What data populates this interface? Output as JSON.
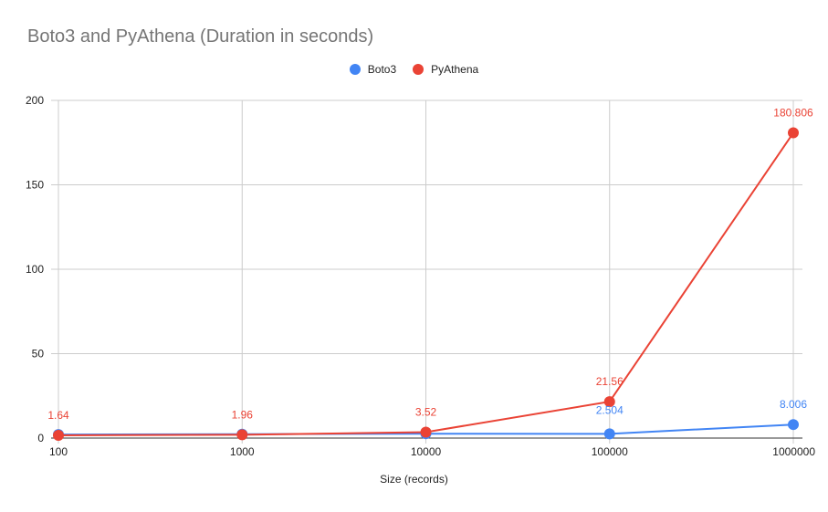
{
  "chart_data": {
    "type": "line",
    "title": "Boto3 and PyAthena (Duration in seconds)",
    "xlabel": "Size (records)",
    "ylabel": "",
    "categories": [
      "100",
      "1000",
      "10000",
      "100000",
      "1000000"
    ],
    "series": [
      {
        "name": "Boto3",
        "color": "#4285f4",
        "values": [
          2.1,
          2.3,
          2.6,
          2.504,
          8.006
        ],
        "labels": [
          "",
          "",
          "",
          "2.504",
          "8.006"
        ]
      },
      {
        "name": "PyAthena",
        "color": "#ea4335",
        "values": [
          1.64,
          1.96,
          3.52,
          21.56,
          180.806
        ],
        "labels": [
          "1.64",
          "1.96",
          "3.52",
          "21.56",
          "180.806"
        ]
      }
    ],
    "ylim": [
      0,
      200
    ],
    "yticks": [
      "0",
      "50",
      "100",
      "150",
      "200"
    ],
    "grid": true,
    "legend_position": "top"
  },
  "legend": [
    {
      "label": "Boto3",
      "color": "#4285f4"
    },
    {
      "label": "PyAthena",
      "color": "#ea4335"
    }
  ]
}
